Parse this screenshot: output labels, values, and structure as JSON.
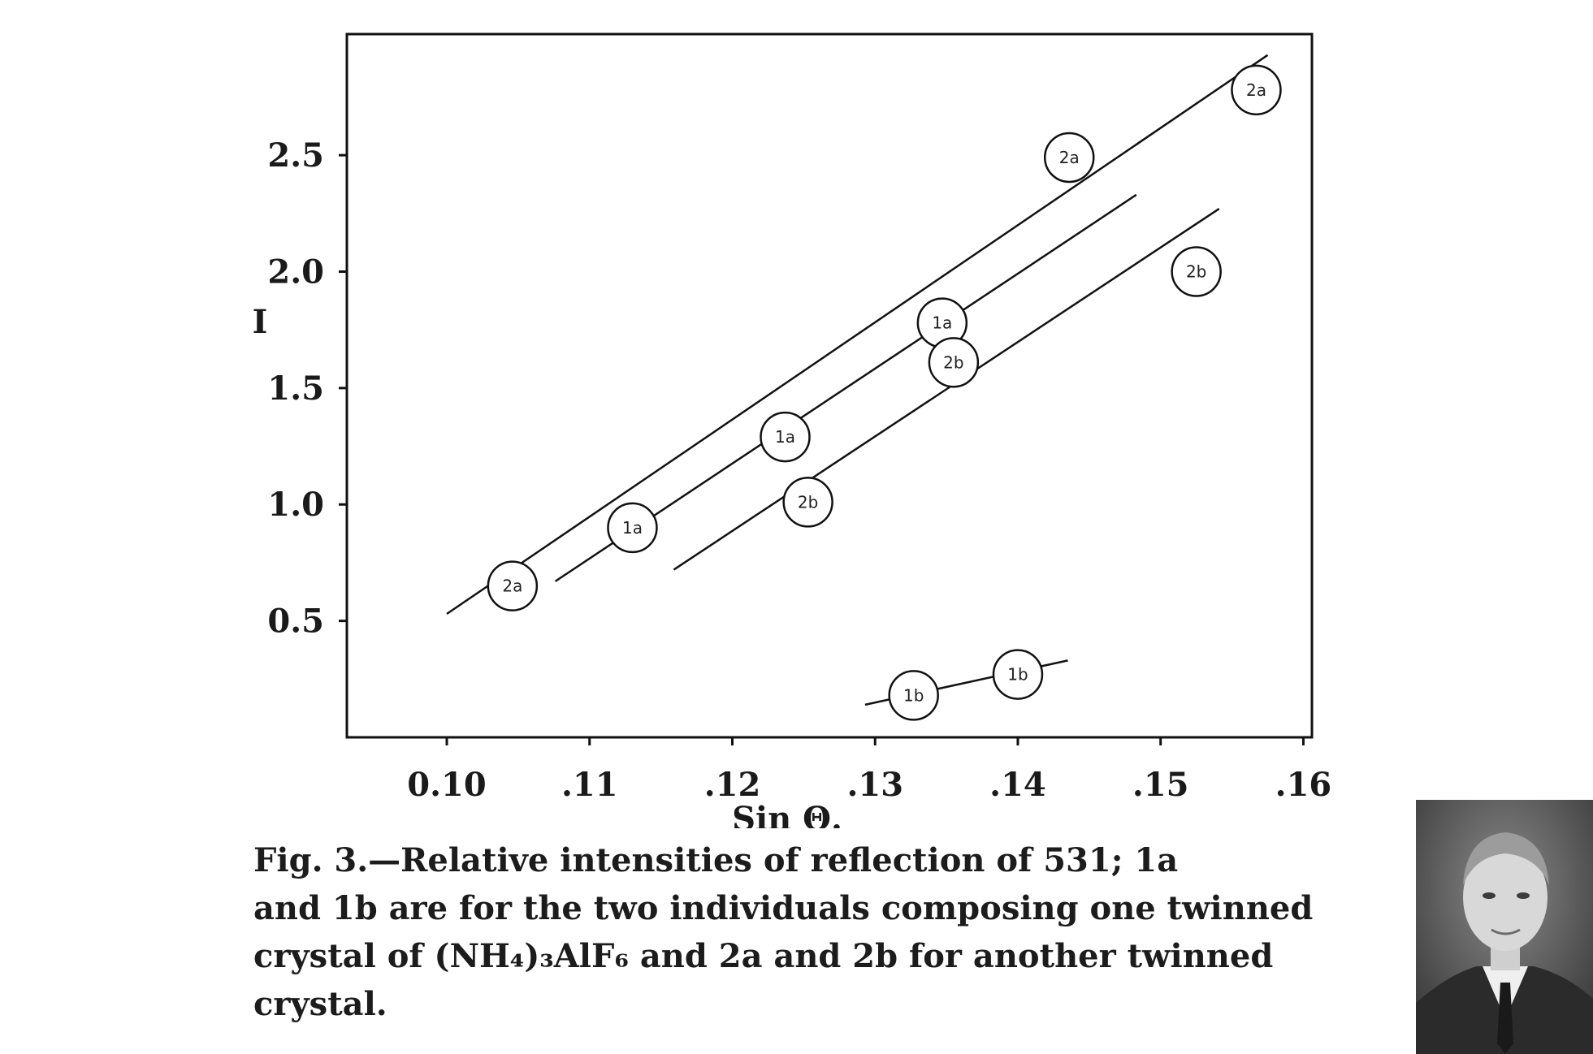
{
  "chart_data": {
    "type": "scatter",
    "xlabel": "Sin Θ.",
    "ylabel": "I",
    "xlim": [
      0.093,
      0.1606
    ],
    "ylim": [
      0.0,
      3.02
    ],
    "x_ticks": [
      0.1,
      0.11,
      0.12,
      0.13,
      0.14,
      0.15,
      0.16
    ],
    "x_tick_labels": [
      "0.10",
      ".11",
      ".12",
      ".13",
      ".14",
      ".15",
      ".16"
    ],
    "y_ticks": [
      0.5,
      1.0,
      1.5,
      2.0,
      2.5
    ],
    "y_tick_labels": [
      "0.5",
      "1.0",
      "1.5",
      "2.0",
      "2.5"
    ],
    "grid": false,
    "points": [
      {
        "label": "2a",
        "x": 0.1046,
        "y": 0.65
      },
      {
        "label": "2a",
        "x": 0.1436,
        "y": 2.49
      },
      {
        "label": "2a",
        "x": 0.1567,
        "y": 2.78
      },
      {
        "label": "1a",
        "x": 0.113,
        "y": 0.9
      },
      {
        "label": "1a",
        "x": 0.1237,
        "y": 1.29
      },
      {
        "label": "1a",
        "x": 0.1347,
        "y": 1.78
      },
      {
        "label": "2b",
        "x": 0.1253,
        "y": 1.01
      },
      {
        "label": "2b",
        "x": 0.1355,
        "y": 1.61
      },
      {
        "label": "2b",
        "x": 0.1525,
        "y": 2.0
      },
      {
        "label": "1b",
        "x": 0.1327,
        "y": 0.18
      },
      {
        "label": "1b",
        "x": 0.14,
        "y": 0.27
      }
    ],
    "fit_lines": [
      {
        "x": [
          0.1,
          0.1575
        ],
        "y": [
          0.53,
          2.93
        ]
      },
      {
        "x": [
          0.1076,
          0.1483
        ],
        "y": [
          0.67,
          2.33
        ]
      },
      {
        "x": [
          0.1159,
          0.1541
        ],
        "y": [
          0.72,
          2.27
        ]
      },
      {
        "x": [
          0.1293,
          0.1435
        ],
        "y": [
          0.14,
          0.33
        ]
      }
    ]
  },
  "caption": {
    "lines": [
      "Fig.  3.—Relative  intensities  of  reflection  of  531;  1a",
      "and 1b are for the two individuals composing one twinned",
      "crystal of (NH₄)₃AlF₆ and 2a and 2b for another twinned",
      "crystal."
    ]
  }
}
